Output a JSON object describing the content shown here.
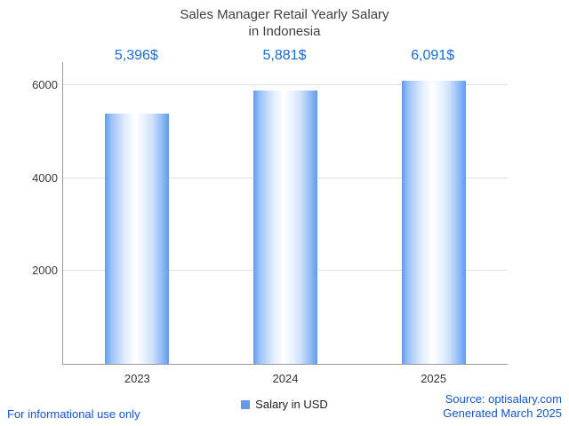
{
  "title": {
    "line1": "Sales Manager Retail Yearly Salary",
    "line2": "in Indonesia"
  },
  "chart_data": {
    "type": "bar",
    "title": "Sales Manager Retail Yearly Salary in Indonesia",
    "categories": [
      "2023",
      "2024",
      "2025"
    ],
    "values": [
      5396,
      5881,
      6091
    ],
    "value_labels": [
      "5,396$",
      "5,881$",
      "6,091$"
    ],
    "xlabel": "",
    "ylabel": "",
    "ylim": [
      0,
      6500
    ],
    "yticks": [
      2000,
      4000,
      6000
    ],
    "grid": true,
    "legend": {
      "label": "Salary in USD",
      "position": "bottom"
    }
  },
  "colors": {
    "value_label_blue": "#176bd4",
    "footer_link_blue": "#1155cc",
    "bar_edge_blue": "#5f9bef",
    "bar_center": "#ffffff",
    "legend_swatch": "#6699e8",
    "gridline": "#e0e0e0",
    "axis": "#9a9a9a",
    "title_text": "#3f3f3f"
  },
  "footer": {
    "left": "For informational use only",
    "source": "Source: optisalary.com",
    "generated": "Generated March 2025"
  }
}
